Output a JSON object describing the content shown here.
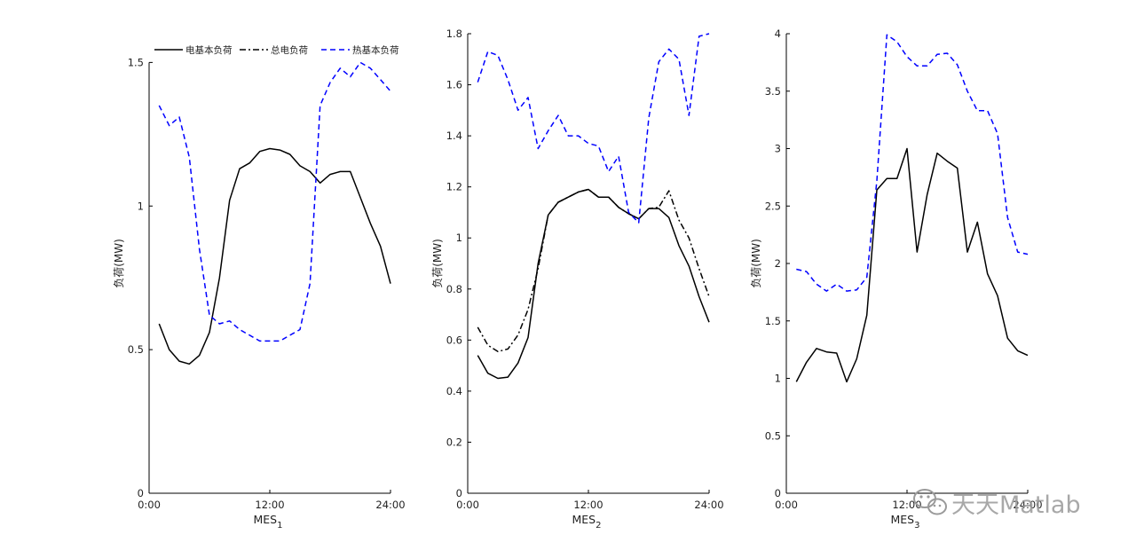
{
  "chart_data": [
    {
      "type": "line",
      "xlabel": "MES",
      "xlabel_sub": "1",
      "ylabel": "负荷(MW)",
      "x_ticks": [
        "0:00",
        "12:00",
        "24:00"
      ],
      "ylim": [
        0,
        1.6
      ],
      "y_ticks": [
        "0",
        "0.5",
        "1",
        "1.5"
      ],
      "y_tick_values": [
        0,
        0.5,
        1,
        1.5
      ],
      "x": [
        1,
        2,
        3,
        4,
        5,
        6,
        7,
        8,
        9,
        10,
        11,
        12,
        13,
        14,
        15,
        16,
        17,
        18,
        19,
        20,
        21,
        22,
        23,
        24
      ],
      "legend": {
        "position": "top",
        "entries": [
          "电基本负荷",
          "总电负荷",
          "热基本负荷"
        ]
      },
      "series": [
        {
          "name": "电基本负荷",
          "style": "solid",
          "color": "#000000",
          "values": [
            0.59,
            0.5,
            0.46,
            0.45,
            0.48,
            0.56,
            0.75,
            1.02,
            1.13,
            1.15,
            1.19,
            1.2,
            1.195,
            1.18,
            1.14,
            1.12,
            1.08,
            1.11,
            1.12,
            1.12,
            1.03,
            0.94,
            0.86,
            0.73
          ]
        },
        {
          "name": "热基本负荷",
          "style": "dashed",
          "color": "#0000ff",
          "values": [
            1.35,
            1.28,
            1.31,
            1.17,
            0.85,
            0.62,
            0.59,
            0.6,
            0.57,
            0.55,
            0.53,
            0.53,
            0.53,
            0.55,
            0.57,
            0.73,
            1.35,
            1.43,
            1.48,
            1.45,
            1.5,
            1.48,
            1.44,
            1.4
          ]
        }
      ]
    },
    {
      "type": "line",
      "xlabel": "MES",
      "xlabel_sub": "2",
      "ylabel": "负荷(MW)",
      "x_ticks": [
        "0:00",
        "12:00",
        "24:00"
      ],
      "ylim": [
        0,
        1.8
      ],
      "y_ticks": [
        "0",
        "0.2",
        "0.4",
        "0.6",
        "0.8",
        "1",
        "1.2",
        "1.4",
        "1.6",
        "1.8"
      ],
      "y_tick_values": [
        0,
        0.2,
        0.4,
        0.6,
        0.8,
        1.0,
        1.2,
        1.4,
        1.6,
        1.8
      ],
      "x": [
        1,
        2,
        3,
        4,
        5,
        6,
        7,
        8,
        9,
        10,
        11,
        12,
        13,
        14,
        15,
        16,
        17,
        18,
        19,
        20,
        21,
        22,
        23,
        24
      ],
      "series": [
        {
          "name": "电基本负荷",
          "style": "solid",
          "color": "#000000",
          "values": [
            0.54,
            0.47,
            0.45,
            0.455,
            0.51,
            0.61,
            0.9,
            1.09,
            1.14,
            1.16,
            1.18,
            1.19,
            1.16,
            1.16,
            1.12,
            1.095,
            1.075,
            1.115,
            1.115,
            1.08,
            0.97,
            0.89,
            0.77,
            0.67
          ]
        },
        {
          "name": "总电负荷",
          "style": "dashdot",
          "color": "#000000",
          "values": [
            0.65,
            0.58,
            0.555,
            0.565,
            0.62,
            0.72,
            0.88,
            1.09,
            1.14,
            1.16,
            1.18,
            1.19,
            1.16,
            1.16,
            1.12,
            1.095,
            1.075,
            1.115,
            1.12,
            1.185,
            1.07,
            1.0,
            0.88,
            0.77
          ]
        },
        {
          "name": "热基本负荷",
          "style": "dashed",
          "color": "#0000ff",
          "values": [
            1.61,
            1.73,
            1.715,
            1.62,
            1.5,
            1.55,
            1.35,
            1.42,
            1.48,
            1.4,
            1.4,
            1.37,
            1.36,
            1.26,
            1.32,
            1.1,
            1.06,
            1.47,
            1.69,
            1.74,
            1.7,
            1.48,
            1.79,
            1.8
          ]
        }
      ]
    },
    {
      "type": "line",
      "xlabel": "MES",
      "xlabel_sub": "3",
      "ylabel": "负荷(MW)",
      "x_ticks": [
        "0:00",
        "12:00",
        "24:00"
      ],
      "ylim": [
        0,
        4
      ],
      "y_ticks": [
        "0",
        "0.5",
        "1",
        "1.5",
        "2",
        "2.5",
        "3",
        "3.5",
        "4"
      ],
      "y_tick_values": [
        0,
        0.5,
        1,
        1.5,
        2,
        2.5,
        3,
        3.5,
        4
      ],
      "x": [
        1,
        2,
        3,
        4,
        5,
        6,
        7,
        8,
        9,
        10,
        11,
        12,
        13,
        14,
        15,
        16,
        17,
        18,
        19,
        20,
        21,
        22,
        23,
        24
      ],
      "series": [
        {
          "name": "电基本负荷",
          "style": "solid",
          "color": "#000000",
          "values": [
            0.97,
            1.14,
            1.26,
            1.23,
            1.22,
            0.97,
            1.17,
            1.55,
            2.64,
            2.74,
            2.74,
            3.0,
            2.1,
            2.6,
            2.96,
            2.89,
            2.83,
            2.1,
            2.36,
            1.91,
            1.72,
            1.35,
            1.24,
            1.2
          ]
        },
        {
          "name": "热基本负荷",
          "style": "dashed",
          "color": "#0000ff",
          "values": [
            1.95,
            1.93,
            1.82,
            1.76,
            1.82,
            1.76,
            1.77,
            1.88,
            2.72,
            3.99,
            3.93,
            3.8,
            3.72,
            3.72,
            3.82,
            3.83,
            3.73,
            3.5,
            3.33,
            3.33,
            3.13,
            2.4,
            2.1,
            2.08
          ]
        }
      ]
    }
  ],
  "watermark": {
    "text": "天天Matlab",
    "icon": "wechat-icon"
  }
}
